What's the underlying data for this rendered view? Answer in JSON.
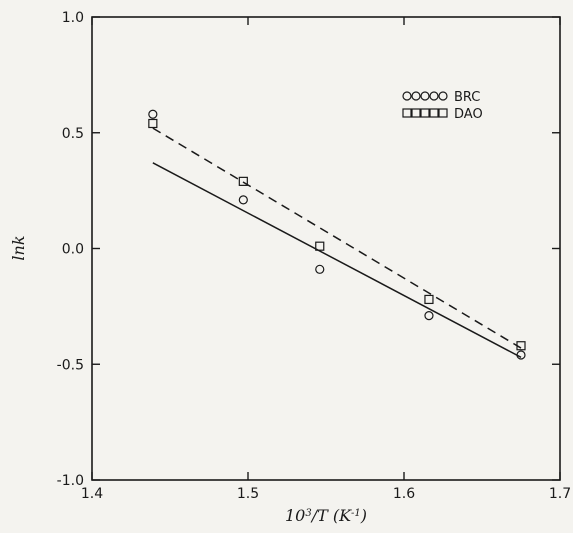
{
  "chart_data": {
    "type": "scatter",
    "xlabel_base": "10",
    "xlabel_exp": "3",
    "xlabel_rest": "/T  (K",
    "xlabel_unit_exp": "-1",
    "xlabel_close": ")",
    "ylabel": "lnk",
    "xlim": [
      1.4,
      1.7
    ],
    "ylim": [
      -1.0,
      1.0
    ],
    "x_ticks": [
      1.4,
      1.5,
      1.6,
      1.7
    ],
    "x_tick_labels": [
      "1.4",
      "1.5",
      "1.6",
      "1.7"
    ],
    "y_ticks": [
      -1.0,
      -0.5,
      0.0,
      0.5,
      1.0
    ],
    "y_tick_labels": [
      "-1.0",
      "-0.5",
      "0.0",
      "0.5",
      "1.0"
    ],
    "grid": false,
    "legend": "top-right",
    "series": [
      {
        "name": "BRC",
        "marker": "circle",
        "points": [
          {
            "x": 1.439,
            "y": 0.58
          },
          {
            "x": 1.497,
            "y": 0.21
          },
          {
            "x": 1.546,
            "y": -0.09
          },
          {
            "x": 1.616,
            "y": -0.29
          },
          {
            "x": 1.675,
            "y": -0.46
          }
        ],
        "fit": {
          "style": "solid",
          "x": [
            1.439,
            1.675
          ],
          "y": [
            0.37,
            -0.47
          ]
        }
      },
      {
        "name": "DAO",
        "marker": "square",
        "points": [
          {
            "x": 1.439,
            "y": 0.54
          },
          {
            "x": 1.497,
            "y": 0.29
          },
          {
            "x": 1.546,
            "y": 0.01
          },
          {
            "x": 1.616,
            "y": -0.22
          },
          {
            "x": 1.675,
            "y": -0.42
          }
        ],
        "fit": {
          "style": "dashed",
          "x": [
            1.439,
            1.675
          ],
          "y": [
            0.52,
            -0.43
          ]
        }
      }
    ]
  }
}
